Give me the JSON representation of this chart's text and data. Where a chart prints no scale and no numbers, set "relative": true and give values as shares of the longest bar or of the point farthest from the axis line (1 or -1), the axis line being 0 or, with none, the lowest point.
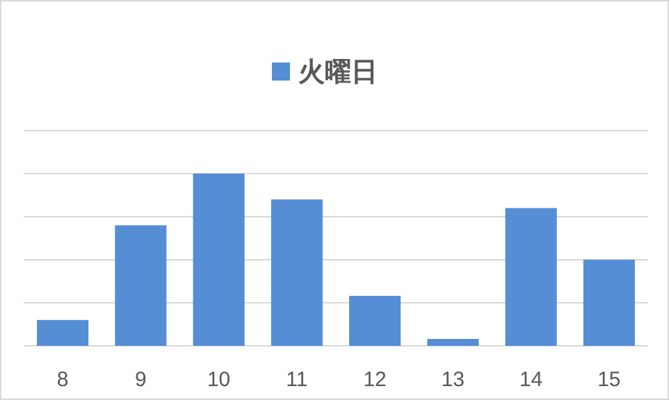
{
  "chart_data": {
    "type": "bar",
    "relative": true,
    "categories": [
      "8",
      "9",
      "10",
      "11",
      "12",
      "13",
      "14",
      "15"
    ],
    "series": [
      {
        "name": "火曜日",
        "color": "#558ed5",
        "values": [
          0.15,
          0.7,
          1,
          0.85,
          0.29,
          0.04,
          0.8,
          0.5
        ]
      }
    ],
    "grid": true,
    "legend": "top"
  }
}
